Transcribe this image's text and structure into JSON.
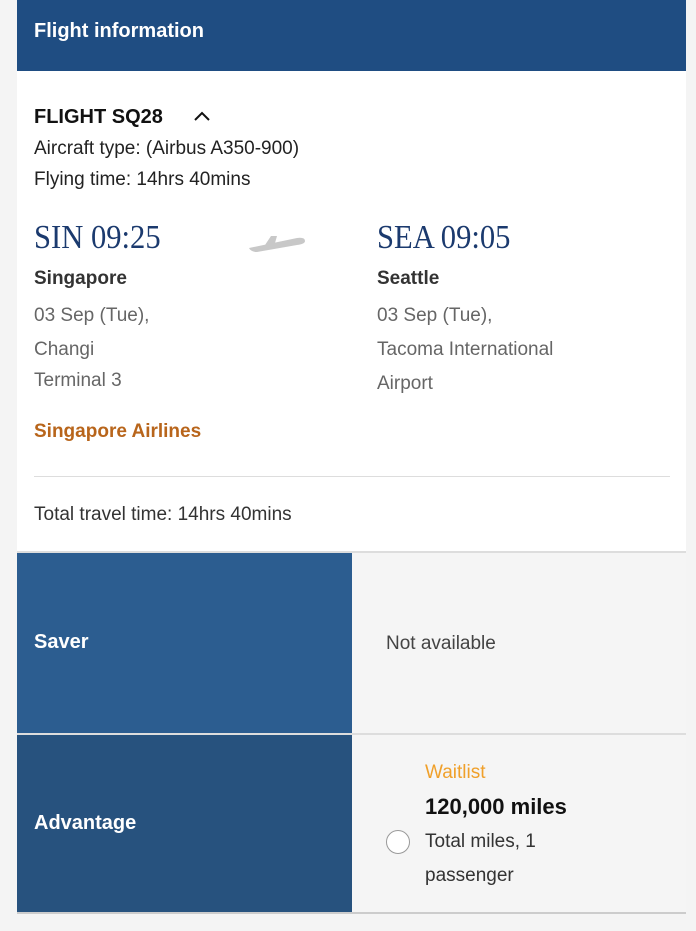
{
  "header": {
    "title": "Flight information"
  },
  "flight": {
    "number": "FLIGHT SQ28",
    "aircraft": "Aircraft type: (Airbus A350-900)",
    "flying_time": "Flying time: 14hrs 40mins",
    "origin": {
      "code_time": "SIN 09:25",
      "city": "Singapore",
      "date": "03 Sep (Tue),",
      "airport": "Changi",
      "terminal": "Terminal 3"
    },
    "destination": {
      "code_time": "SEA 09:05",
      "city": "Seattle",
      "date": "03 Sep (Tue),",
      "airport_line1": "Tacoma International",
      "airport_line2": "Airport"
    },
    "airline": "Singapore Airlines",
    "total_travel_time": "Total travel time: 14hrs 40mins"
  },
  "fares": [
    {
      "label": "Saver",
      "status": "Not available"
    },
    {
      "label": "Advantage",
      "status": "Waitlist",
      "miles": "120,000 miles",
      "note_line1": "Total miles, 1",
      "note_line2": "passenger",
      "selected": false
    }
  ],
  "colors": {
    "header": "#1f4d82",
    "saver": "#2c5d90",
    "advantage": "#27527e",
    "airline": "#b8651b",
    "waitlist": "#f0a02a"
  }
}
